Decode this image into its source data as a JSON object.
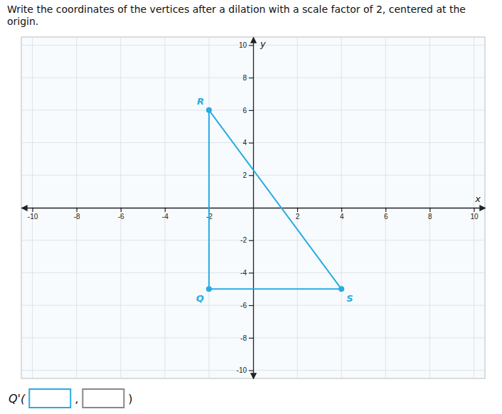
{
  "chart_data": {
    "type": "polygon",
    "title": "Write the coordinates of the vertices after a dilation with a scale factor of 2, centered at the origin.",
    "xlabel": "x",
    "ylabel": "y",
    "x": [
      -2,
      -2,
      4
    ],
    "values": [
      6,
      -5,
      -5
    ],
    "point_labels": [
      "R",
      "Q",
      "S"
    ],
    "color": "#29ABE2",
    "marker": "circle",
    "xlim": [
      -10.5,
      10.5
    ],
    "ylim": [
      -10.5,
      10.5
    ],
    "xticks": [
      -10,
      -8,
      -6,
      -4,
      -2,
      2,
      4,
      6,
      8,
      10
    ],
    "yticks": [
      -10,
      -8,
      -6,
      -4,
      -2,
      2,
      4,
      6,
      8,
      10
    ],
    "grid": true,
    "annotations": [
      "Q'(",
      ",",
      ")"
    ]
  }
}
